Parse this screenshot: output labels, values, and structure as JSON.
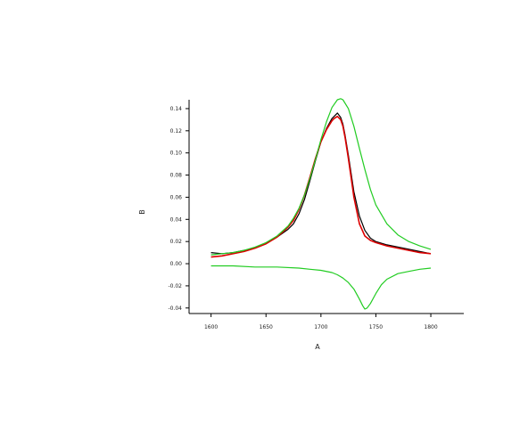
{
  "chart_data": {
    "type": "line",
    "xlabel": "A",
    "ylabel": "B",
    "xlim": [
      1580,
      1830
    ],
    "ylim": [
      -0.045,
      0.148
    ],
    "x_ticks": [
      1600,
      1650,
      1700,
      1750,
      1800
    ],
    "x_tick_labels": [
      "1600",
      "1650",
      "1700",
      "1750",
      "1800"
    ],
    "y_ticks": [
      -0.04,
      -0.02,
      0.0,
      0.02,
      0.04,
      0.06,
      0.08,
      0.1,
      0.12,
      0.14
    ],
    "y_tick_labels": [
      "-0.04",
      "-0.02",
      "0.00",
      "0.02",
      "0.04",
      "0.06",
      "0.08",
      "0.10",
      "0.12",
      "0.14"
    ],
    "grid": false,
    "legend": false,
    "series": [
      {
        "color": "#000000",
        "x": [
          1600,
          1610,
          1620,
          1630,
          1640,
          1650,
          1660,
          1670,
          1675,
          1680,
          1685,
          1690,
          1695,
          1700,
          1705,
          1710,
          1712,
          1715,
          1718,
          1720,
          1722,
          1725,
          1730,
          1735,
          1740,
          1745,
          1750,
          1760,
          1770,
          1780,
          1790,
          1800
        ],
        "y": [
          0.01,
          0.009,
          0.01,
          0.012,
          0.014,
          0.018,
          0.024,
          0.031,
          0.036,
          0.045,
          0.058,
          0.075,
          0.093,
          0.11,
          0.122,
          0.131,
          0.133,
          0.136,
          0.132,
          0.126,
          0.116,
          0.098,
          0.065,
          0.043,
          0.03,
          0.023,
          0.02,
          0.017,
          0.015,
          0.013,
          0.011,
          0.009
        ]
      },
      {
        "color": "#dd0000",
        "x": [
          1600,
          1610,
          1620,
          1630,
          1640,
          1650,
          1660,
          1670,
          1675,
          1680,
          1685,
          1690,
          1695,
          1700,
          1705,
          1710,
          1712,
          1715,
          1718,
          1720,
          1722,
          1725,
          1730,
          1735,
          1740,
          1745,
          1750,
          1760,
          1770,
          1780,
          1790,
          1800
        ],
        "y": [
          0.006,
          0.007,
          0.009,
          0.011,
          0.014,
          0.018,
          0.024,
          0.033,
          0.039,
          0.049,
          0.062,
          0.078,
          0.095,
          0.11,
          0.121,
          0.129,
          0.131,
          0.133,
          0.13,
          0.124,
          0.114,
          0.095,
          0.06,
          0.036,
          0.025,
          0.021,
          0.019,
          0.016,
          0.014,
          0.012,
          0.01,
          0.009
        ]
      },
      {
        "color": "#22cc22",
        "x": [
          1600,
          1610,
          1620,
          1630,
          1640,
          1650,
          1660,
          1670,
          1675,
          1680,
          1685,
          1690,
          1695,
          1700,
          1705,
          1710,
          1715,
          1718,
          1720,
          1725,
          1730,
          1735,
          1740,
          1745,
          1750,
          1760,
          1770,
          1780,
          1790,
          1800
        ],
        "y": [
          0.008,
          0.009,
          0.01,
          0.012,
          0.015,
          0.019,
          0.025,
          0.034,
          0.041,
          0.05,
          0.062,
          0.077,
          0.094,
          0.112,
          0.128,
          0.141,
          0.148,
          0.149,
          0.148,
          0.14,
          0.124,
          0.104,
          0.085,
          0.067,
          0.053,
          0.036,
          0.026,
          0.02,
          0.016,
          0.013
        ]
      },
      {
        "color": "#22cc22",
        "x": [
          1600,
          1620,
          1640,
          1660,
          1680,
          1690,
          1700,
          1710,
          1715,
          1720,
          1725,
          1730,
          1735,
          1738,
          1740,
          1742,
          1745,
          1750,
          1755,
          1760,
          1770,
          1780,
          1790,
          1800
        ],
        "y": [
          -0.002,
          -0.002,
          -0.003,
          -0.003,
          -0.004,
          -0.005,
          -0.006,
          -0.008,
          -0.01,
          -0.013,
          -0.017,
          -0.023,
          -0.032,
          -0.038,
          -0.041,
          -0.04,
          -0.036,
          -0.027,
          -0.019,
          -0.014,
          -0.009,
          -0.007,
          -0.005,
          -0.004
        ]
      }
    ]
  }
}
